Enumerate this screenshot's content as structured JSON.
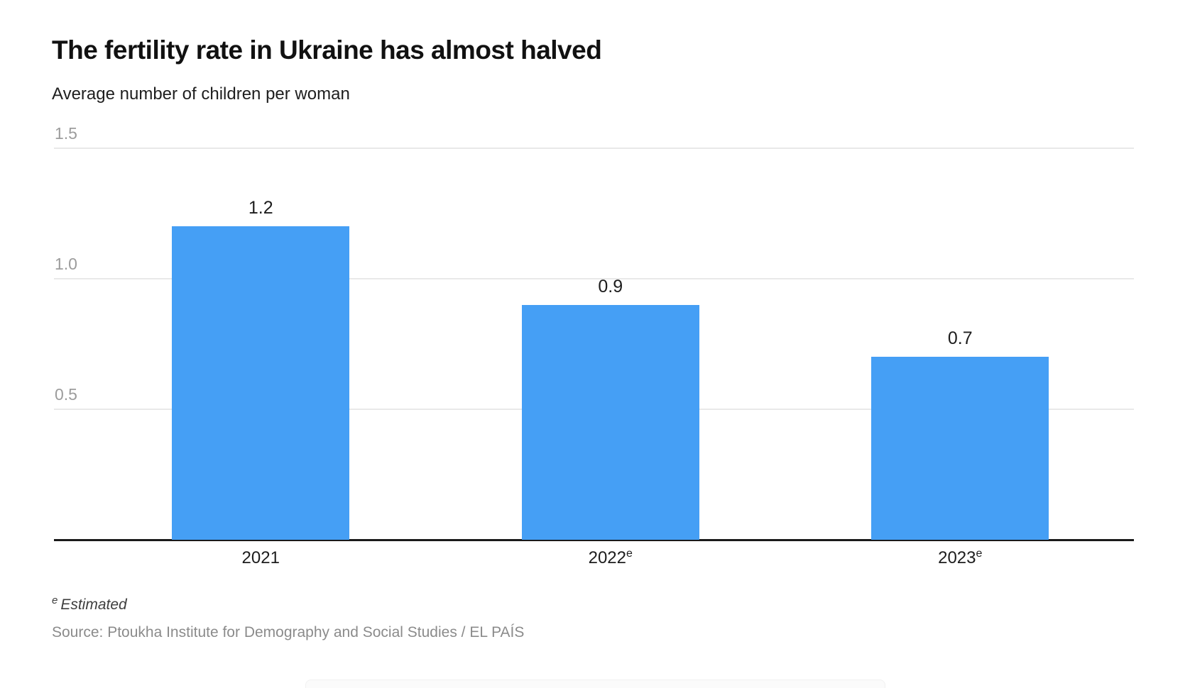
{
  "header": {
    "title": "The fertility rate in Ukraine has almost halved",
    "subtitle": "Average number of children per woman"
  },
  "footer": {
    "footnote_marker": "e",
    "footnote_text": "Estimated",
    "source": "Source: Ptoukha Institute for Demography and Social Studies / EL PAÍS"
  },
  "colors": {
    "bar": "#459ff5",
    "gridline": "#e9e9e9",
    "axis": "#1a1a1a",
    "tick_label": "#9c9c9c"
  },
  "chart_data": {
    "type": "bar",
    "title": "The fertility rate in Ukraine has almost halved",
    "subtitle": "Average number of children per woman",
    "categories": [
      {
        "label": "2021",
        "sup": ""
      },
      {
        "label": "2022",
        "sup": "e"
      },
      {
        "label": "2023",
        "sup": "e"
      }
    ],
    "values": [
      1.2,
      0.9,
      0.7
    ],
    "value_labels": [
      "1.2",
      "0.9",
      "0.7"
    ],
    "y_ticks": [
      {
        "value": 1.5,
        "label": "1.5"
      },
      {
        "value": 1.0,
        "label": "1.0"
      },
      {
        "value": 0.5,
        "label": "0.5"
      }
    ],
    "ylim": [
      0,
      1.5
    ],
    "xlabel": "",
    "ylabel": "Average number of children per woman",
    "grid": true,
    "legend_position": "none"
  }
}
